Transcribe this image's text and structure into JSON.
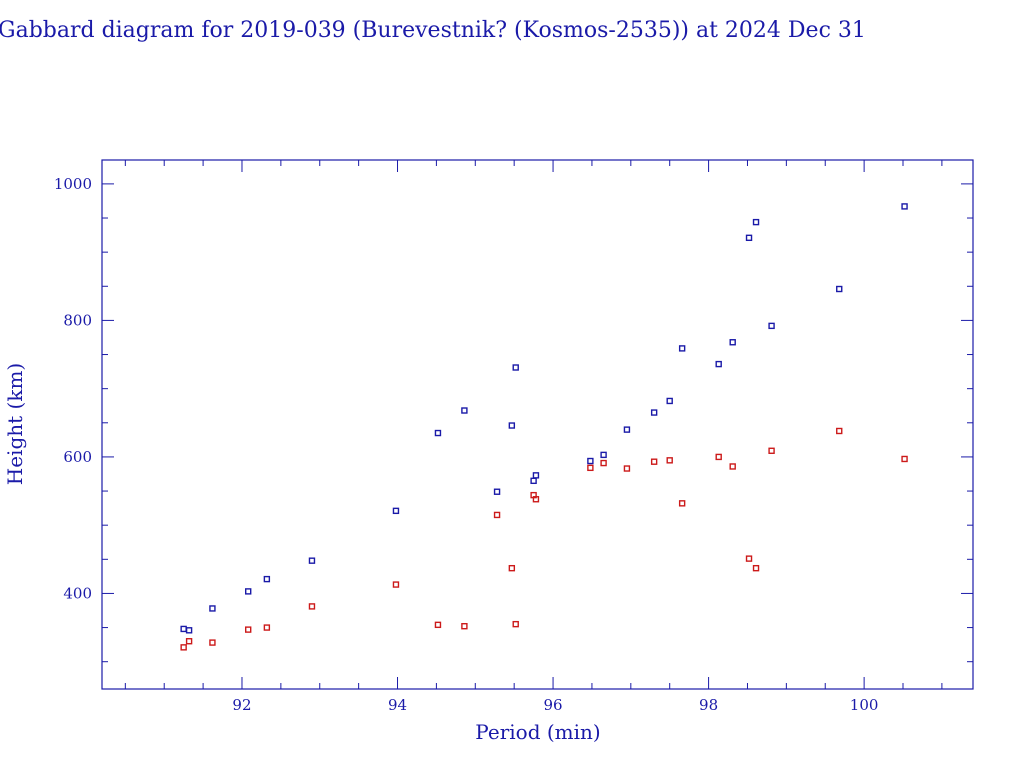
{
  "chart_data": {
    "type": "scatter",
    "title": "Gabbard diagram for 2019-039 (Burevestnik? (Kosmos-2535)) at 2024 Dec 31",
    "xlabel": "Period (min)",
    "ylabel": "Height (km)",
    "xlim": [
      90.2,
      101.4
    ],
    "ylim": [
      260,
      1035
    ],
    "x_ticks": [
      92,
      94,
      96,
      98,
      100
    ],
    "y_ticks": [
      400,
      600,
      800,
      1000
    ],
    "grid": false,
    "colors": {
      "apogee": "#1a1aa8",
      "perigee": "#cc1a1a",
      "axis": "#1a1aa8"
    },
    "series": [
      {
        "color": "#1a1aa8",
        "points": [
          {
            "x": 91.25,
            "y": 348
          },
          {
            "x": 91.32,
            "y": 346
          },
          {
            "x": 91.62,
            "y": 378
          },
          {
            "x": 92.08,
            "y": 403
          },
          {
            "x": 92.32,
            "y": 421
          },
          {
            "x": 92.9,
            "y": 448
          },
          {
            "x": 93.98,
            "y": 521
          },
          {
            "x": 94.52,
            "y": 635
          },
          {
            "x": 94.86,
            "y": 668
          },
          {
            "x": 95.28,
            "y": 549
          },
          {
            "x": 95.47,
            "y": 646
          },
          {
            "x": 95.52,
            "y": 731
          },
          {
            "x": 95.75,
            "y": 565
          },
          {
            "x": 95.78,
            "y": 573
          },
          {
            "x": 96.48,
            "y": 594
          },
          {
            "x": 96.65,
            "y": 603
          },
          {
            "x": 96.95,
            "y": 640
          },
          {
            "x": 97.3,
            "y": 665
          },
          {
            "x": 97.5,
            "y": 682
          },
          {
            "x": 97.66,
            "y": 759
          },
          {
            "x": 98.13,
            "y": 736
          },
          {
            "x": 98.31,
            "y": 768
          },
          {
            "x": 98.52,
            "y": 921
          },
          {
            "x": 98.61,
            "y": 944
          },
          {
            "x": 98.81,
            "y": 792
          },
          {
            "x": 99.68,
            "y": 846
          },
          {
            "x": 100.52,
            "y": 967
          }
        ]
      },
      {
        "color": "#cc1a1a",
        "points": [
          {
            "x": 91.25,
            "y": 321
          },
          {
            "x": 91.32,
            "y": 330
          },
          {
            "x": 91.62,
            "y": 328
          },
          {
            "x": 92.08,
            "y": 347
          },
          {
            "x": 92.32,
            "y": 350
          },
          {
            "x": 92.9,
            "y": 381
          },
          {
            "x": 93.98,
            "y": 413
          },
          {
            "x": 94.52,
            "y": 354
          },
          {
            "x": 94.86,
            "y": 352
          },
          {
            "x": 95.28,
            "y": 515
          },
          {
            "x": 95.47,
            "y": 437
          },
          {
            "x": 95.52,
            "y": 355
          },
          {
            "x": 95.75,
            "y": 544
          },
          {
            "x": 95.78,
            "y": 538
          },
          {
            "x": 96.48,
            "y": 584
          },
          {
            "x": 96.65,
            "y": 591
          },
          {
            "x": 96.95,
            "y": 583
          },
          {
            "x": 97.3,
            "y": 593
          },
          {
            "x": 97.5,
            "y": 595
          },
          {
            "x": 97.66,
            "y": 532
          },
          {
            "x": 98.13,
            "y": 600
          },
          {
            "x": 98.31,
            "y": 586
          },
          {
            "x": 98.52,
            "y": 451
          },
          {
            "x": 98.61,
            "y": 437
          },
          {
            "x": 98.81,
            "y": 609
          },
          {
            "x": 99.68,
            "y": 638
          },
          {
            "x": 100.52,
            "y": 597
          }
        ]
      }
    ]
  }
}
